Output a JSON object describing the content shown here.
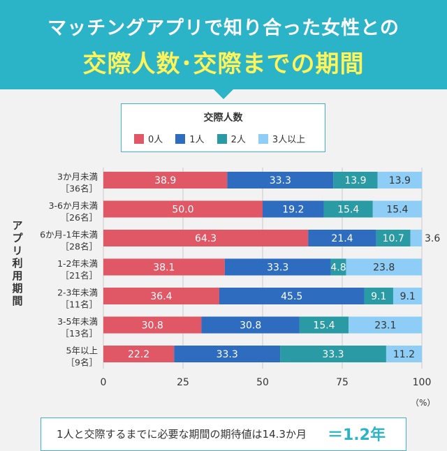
{
  "header": {
    "title_line1": "マッチングアプリで知り合った女性との",
    "title_line2": "交際人数･交際までの期間"
  },
  "legend": {
    "title": "交際人数",
    "items": [
      {
        "label": "0人",
        "color": "#e05865"
      },
      {
        "label": "1人",
        "color": "#2e6cc0"
      },
      {
        "label": "2人",
        "color": "#2a9aa5"
      },
      {
        "label": "3人以上",
        "color": "#8ecdf5"
      }
    ]
  },
  "y_axis_title": "アプリ利用期間",
  "unit": "（%）",
  "footer": {
    "text": "1人と交際するまでに必要な期間の期待値は14.3か月",
    "highlight": "＝1.2年"
  },
  "chart_data": {
    "type": "bar",
    "orientation": "horizontal",
    "stacked": true,
    "categories": [
      [
        "3か月未満",
        "［36名］"
      ],
      [
        "3-6か月未満",
        "［26名］"
      ],
      [
        "6か月-1年未満",
        "［28名］"
      ],
      [
        "1-2年未満",
        "［21名］"
      ],
      [
        "2-3年未満",
        "［11名］"
      ],
      [
        "3-5年未満",
        "［13名］"
      ],
      [
        "5年以上",
        "［9名］"
      ]
    ],
    "series": [
      {
        "name": "0人",
        "color": "#e05865",
        "values": [
          38.9,
          50.0,
          64.3,
          38.1,
          36.4,
          30.8,
          22.2
        ]
      },
      {
        "name": "1人",
        "color": "#2e6cc0",
        "values": [
          33.3,
          19.2,
          21.4,
          33.3,
          45.5,
          30.8,
          33.3
        ]
      },
      {
        "name": "2人",
        "color": "#2a9aa5",
        "values": [
          13.9,
          15.4,
          10.7,
          4.8,
          9.1,
          15.4,
          33.3
        ]
      },
      {
        "name": "3人以上",
        "color": "#8ecdf5",
        "values": [
          13.9,
          15.4,
          3.6,
          23.8,
          9.1,
          23.1,
          11.2
        ]
      }
    ],
    "labels": [
      [
        "38.9",
        "33.3",
        "13.9",
        "13.9"
      ],
      [
        "50.0",
        "19.2",
        "15.4",
        "15.4"
      ],
      [
        "64.3",
        "21.4",
        "10.7",
        "3.6"
      ],
      [
        "38.1",
        "33.3",
        "4.8",
        "23.8"
      ],
      [
        "36.4",
        "45.5",
        "9.1",
        "9.1"
      ],
      [
        "30.8",
        "30.8",
        "15.4",
        "23.1"
      ],
      [
        "22.2",
        "33.3",
        "33.3",
        "11.2"
      ]
    ],
    "outside_labels": [
      [
        2,
        3
      ]
    ],
    "xlim": [
      0,
      100
    ],
    "xticks": [
      "0",
      "25",
      "50",
      "75",
      "100"
    ],
    "label_colors": {
      "dark": "#ffffff",
      "light": "#333333"
    }
  }
}
